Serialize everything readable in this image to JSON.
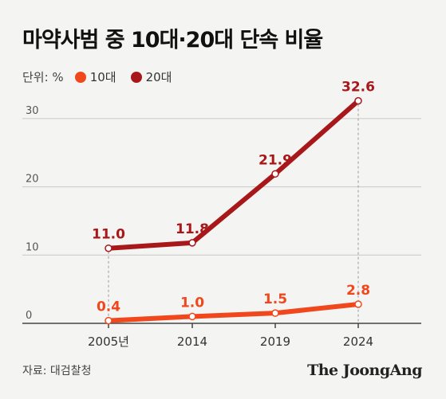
{
  "title": "마약사범 중 10대·20대 단속 비율",
  "unit_label": "단위: %",
  "source": "자료: 대검찰청",
  "brand": "The JoongAng",
  "colors": {
    "teen": "#f1471d",
    "twenties": "#a8171a",
    "grid": "#c8c8c8",
    "axis": "#444444"
  },
  "chart_data": {
    "type": "line",
    "categories": [
      "2005년",
      "2014",
      "2019",
      "2024"
    ],
    "series": [
      {
        "name": "10대",
        "values": [
          0.4,
          1.0,
          1.5,
          2.8
        ],
        "labels": [
          "0.4",
          "1.0",
          "1.5",
          "2.8"
        ],
        "color": "#f1471d"
      },
      {
        "name": "20대",
        "values": [
          11.0,
          11.8,
          21.9,
          32.6
        ],
        "labels": [
          "11.0",
          "11.8",
          "21.9",
          "32.6"
        ],
        "color": "#a8171a"
      }
    ],
    "y_ticks": [
      0,
      10,
      20,
      30
    ],
    "y_tick_labels": [
      "0",
      "10",
      "20",
      "30"
    ],
    "ylim": [
      0,
      35
    ],
    "grid": true,
    "legend_position": "top-left",
    "xlabel": "",
    "ylabel": ""
  }
}
